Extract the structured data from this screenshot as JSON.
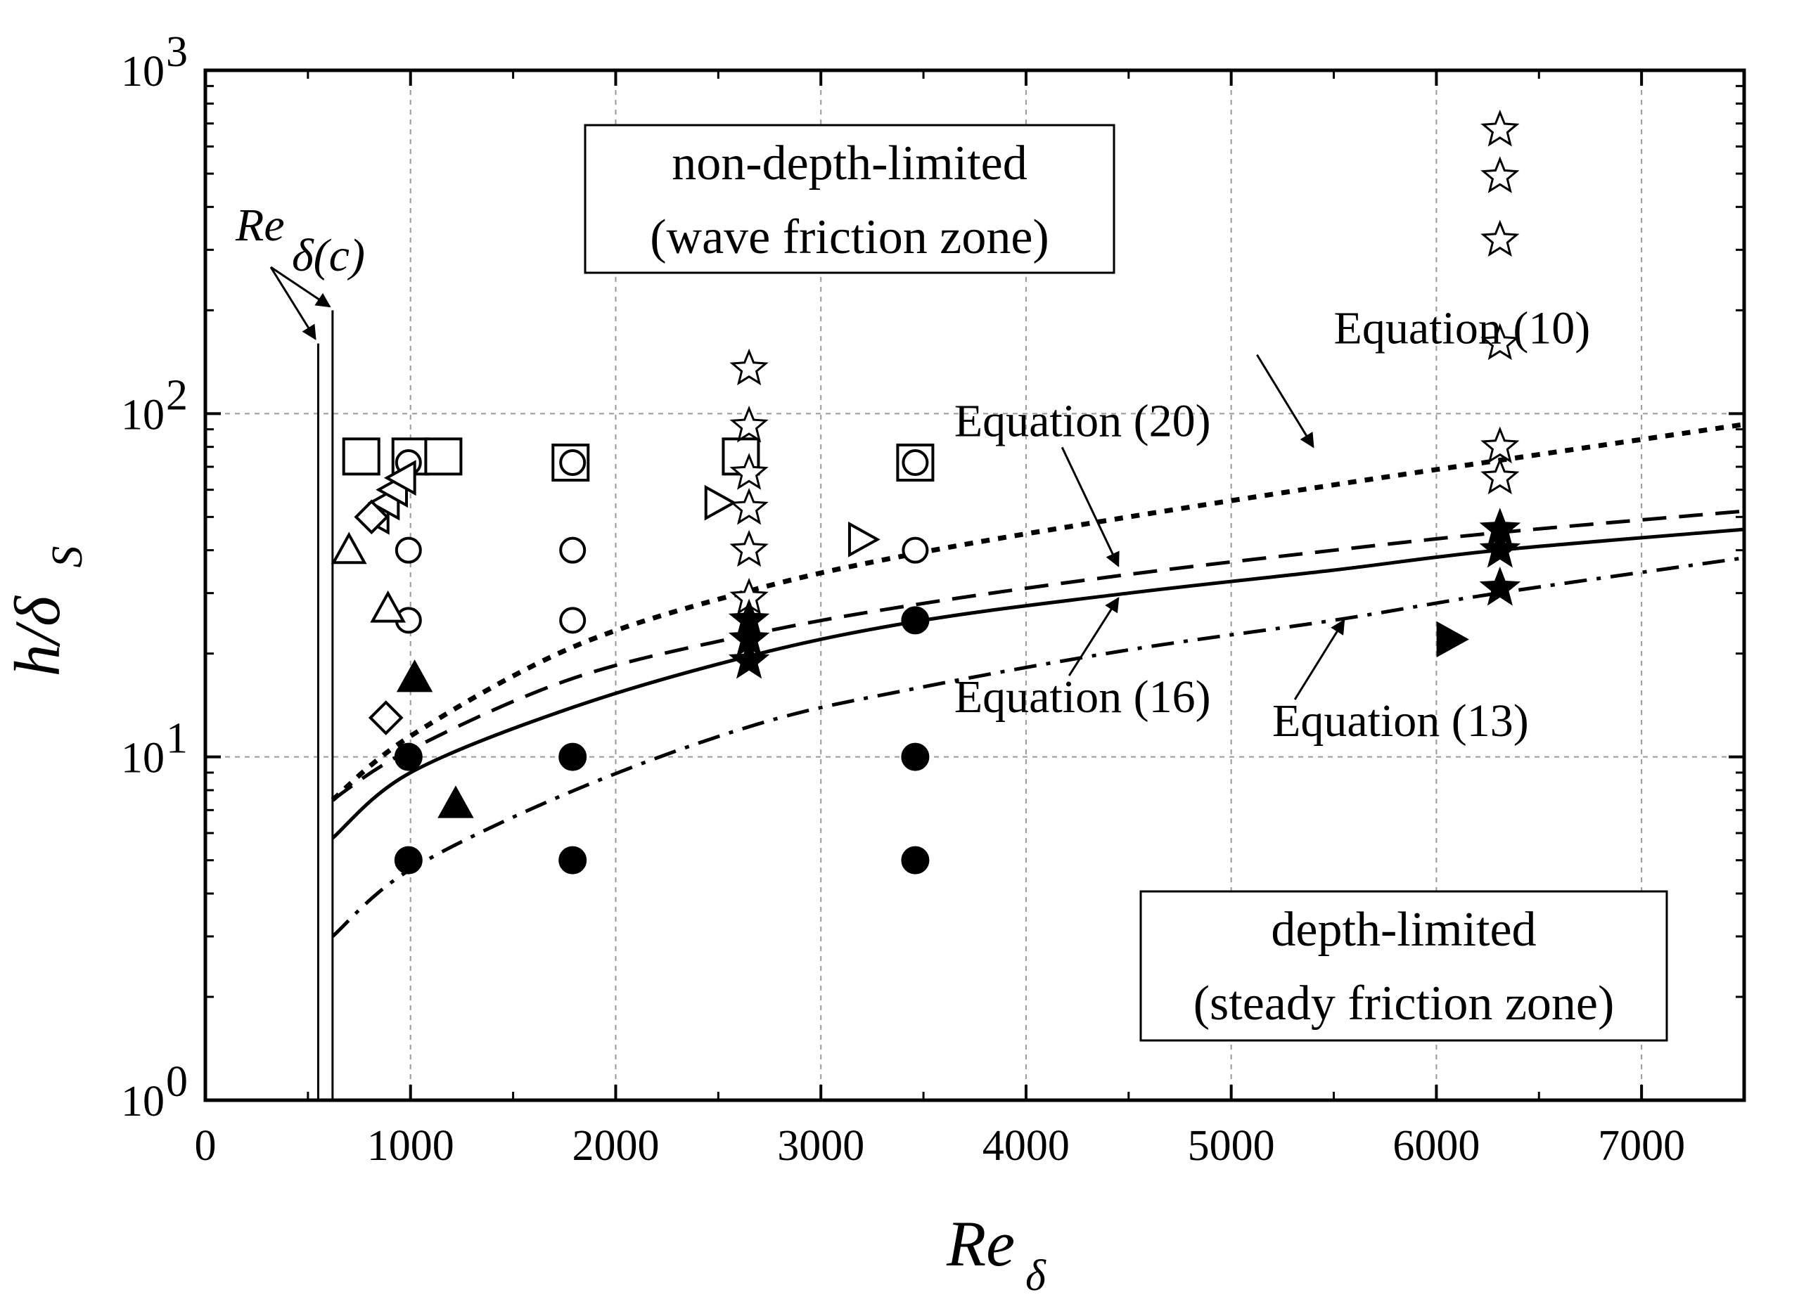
{
  "chart_data": {
    "type": "scatter",
    "xlabel": {
      "main": "Re",
      "sub": "δ"
    },
    "ylabel": {
      "main": "h/δ",
      "sub": "S"
    },
    "xlim": [
      0,
      7500
    ],
    "ylim": [
      1,
      1000
    ],
    "yscale": "log",
    "x_ticks": [
      0,
      1000,
      2000,
      3000,
      4000,
      5000,
      6000,
      7000
    ],
    "x_tick_labels": [
      "0",
      "1000",
      "2000",
      "3000",
      "4000",
      "5000",
      "6000",
      "7000"
    ],
    "y_ticks": [
      1,
      10,
      100,
      1000
    ],
    "y_tick_labels": [
      {
        "base": "10",
        "exp": "0"
      },
      {
        "base": "10",
        "exp": "1"
      },
      {
        "base": "10",
        "exp": "2"
      },
      {
        "base": "10",
        "exp": "3"
      }
    ],
    "grid": "dashed at major ticks",
    "critical_lines": {
      "label": {
        "main": "Re",
        "sub": "δ(c)"
      },
      "x": [
        550,
        620
      ],
      "y_top": [
        160,
        200
      ]
    },
    "zone_labels": [
      {
        "lines": [
          "non-depth-limited",
          "(wave friction zone)"
        ]
      },
      {
        "lines": [
          "depth-limited",
          "(steady friction zone)"
        ]
      }
    ],
    "curves": [
      {
        "label": "Equation (10)",
        "style": "dotted",
        "x": [
          620,
          1000,
          1800,
          2700,
          3500,
          4500,
          5500,
          6300,
          7500
        ],
        "y": [
          7.5,
          11.5,
          21,
          31,
          39.5,
          50,
          62,
          73,
          93
        ],
        "label_x": 5500,
        "label_y": 160,
        "arrow_x": 5400,
        "arrow_y": 80
      },
      {
        "label": "Equation (20)",
        "style": "dashed",
        "x": [
          620,
          1000,
          1800,
          2700,
          3500,
          4500,
          5500,
          6300,
          7500
        ],
        "y": [
          7.5,
          10.5,
          17,
          23,
          28,
          34,
          40,
          45,
          52
        ],
        "label_x": 3650,
        "label_y": 86,
        "arrow_x": 4450,
        "arrow_y": 36
      },
      {
        "label": "Equation (16)",
        "style": "solid",
        "x": [
          620,
          1000,
          1800,
          2700,
          3500,
          4500,
          5500,
          6300,
          7500
        ],
        "y": [
          5.8,
          9,
          14,
          20,
          25,
          30,
          35,
          40,
          46
        ],
        "label_x": 3650,
        "label_y": 13.5,
        "arrow_x": 4450,
        "arrow_y": 29
      },
      {
        "label": "Equation (13)",
        "style": "dashdot",
        "x": [
          620,
          1000,
          1800,
          2700,
          3500,
          4500,
          5500,
          6300,
          7500
        ],
        "y": [
          3.0,
          4.7,
          8,
          12.5,
          16,
          20.5,
          25,
          30,
          38
        ],
        "label_x": 5200,
        "label_y": 11.5,
        "arrow_x": 5550,
        "arrow_y": 25
      }
    ],
    "series": [
      {
        "marker": "open-square",
        "x": [
          760,
          1000,
          1160,
          1780,
          2610,
          3460
        ],
        "y": [
          75,
          75,
          75,
          72,
          75,
          72
        ]
      },
      {
        "marker": "open-circle",
        "x": [
          990,
          1790,
          3460,
          990,
          1790,
          3460,
          990,
          1790
        ],
        "y": [
          72,
          72,
          72,
          40,
          40,
          40,
          25,
          25
        ]
      },
      {
        "marker": "open-triangle-up",
        "x": [
          700,
          890
        ],
        "y": [
          40,
          27
        ]
      },
      {
        "marker": "open-triangle-left",
        "x": [
          830,
          880,
          920,
          960
        ],
        "y": [
          50,
          55,
          60,
          65
        ]
      },
      {
        "marker": "open-diamond",
        "x": [
          810,
          880
        ],
        "y": [
          50,
          13
        ]
      },
      {
        "marker": "open-triangle-right",
        "x": [
          2500,
          3200
        ],
        "y": [
          55,
          43
        ]
      },
      {
        "marker": "open-star",
        "x": [
          2650,
          2650,
          2650,
          2650,
          2650,
          2650,
          6310,
          6310,
          6310,
          6310,
          6310,
          6310
        ],
        "y": [
          135,
          92,
          67,
          53,
          40,
          29,
          670,
          490,
          320,
          160,
          80,
          65
        ]
      },
      {
        "marker": "filled-star",
        "x": [
          2650,
          2650,
          2650,
          6310,
          6310,
          6310
        ],
        "y": [
          25,
          22,
          19,
          46,
          40,
          31
        ]
      },
      {
        "marker": "filled-circle",
        "x": [
          990,
          990,
          1790,
          1790,
          3460,
          3460,
          3460
        ],
        "y": [
          10,
          5,
          10,
          5,
          25,
          10,
          5
        ]
      },
      {
        "marker": "filled-triangle-up",
        "x": [
          1020,
          1220
        ],
        "y": [
          17,
          7.3
        ]
      },
      {
        "marker": "filled-triangle-right",
        "x": [
          6070
        ],
        "y": [
          22
        ]
      }
    ]
  }
}
